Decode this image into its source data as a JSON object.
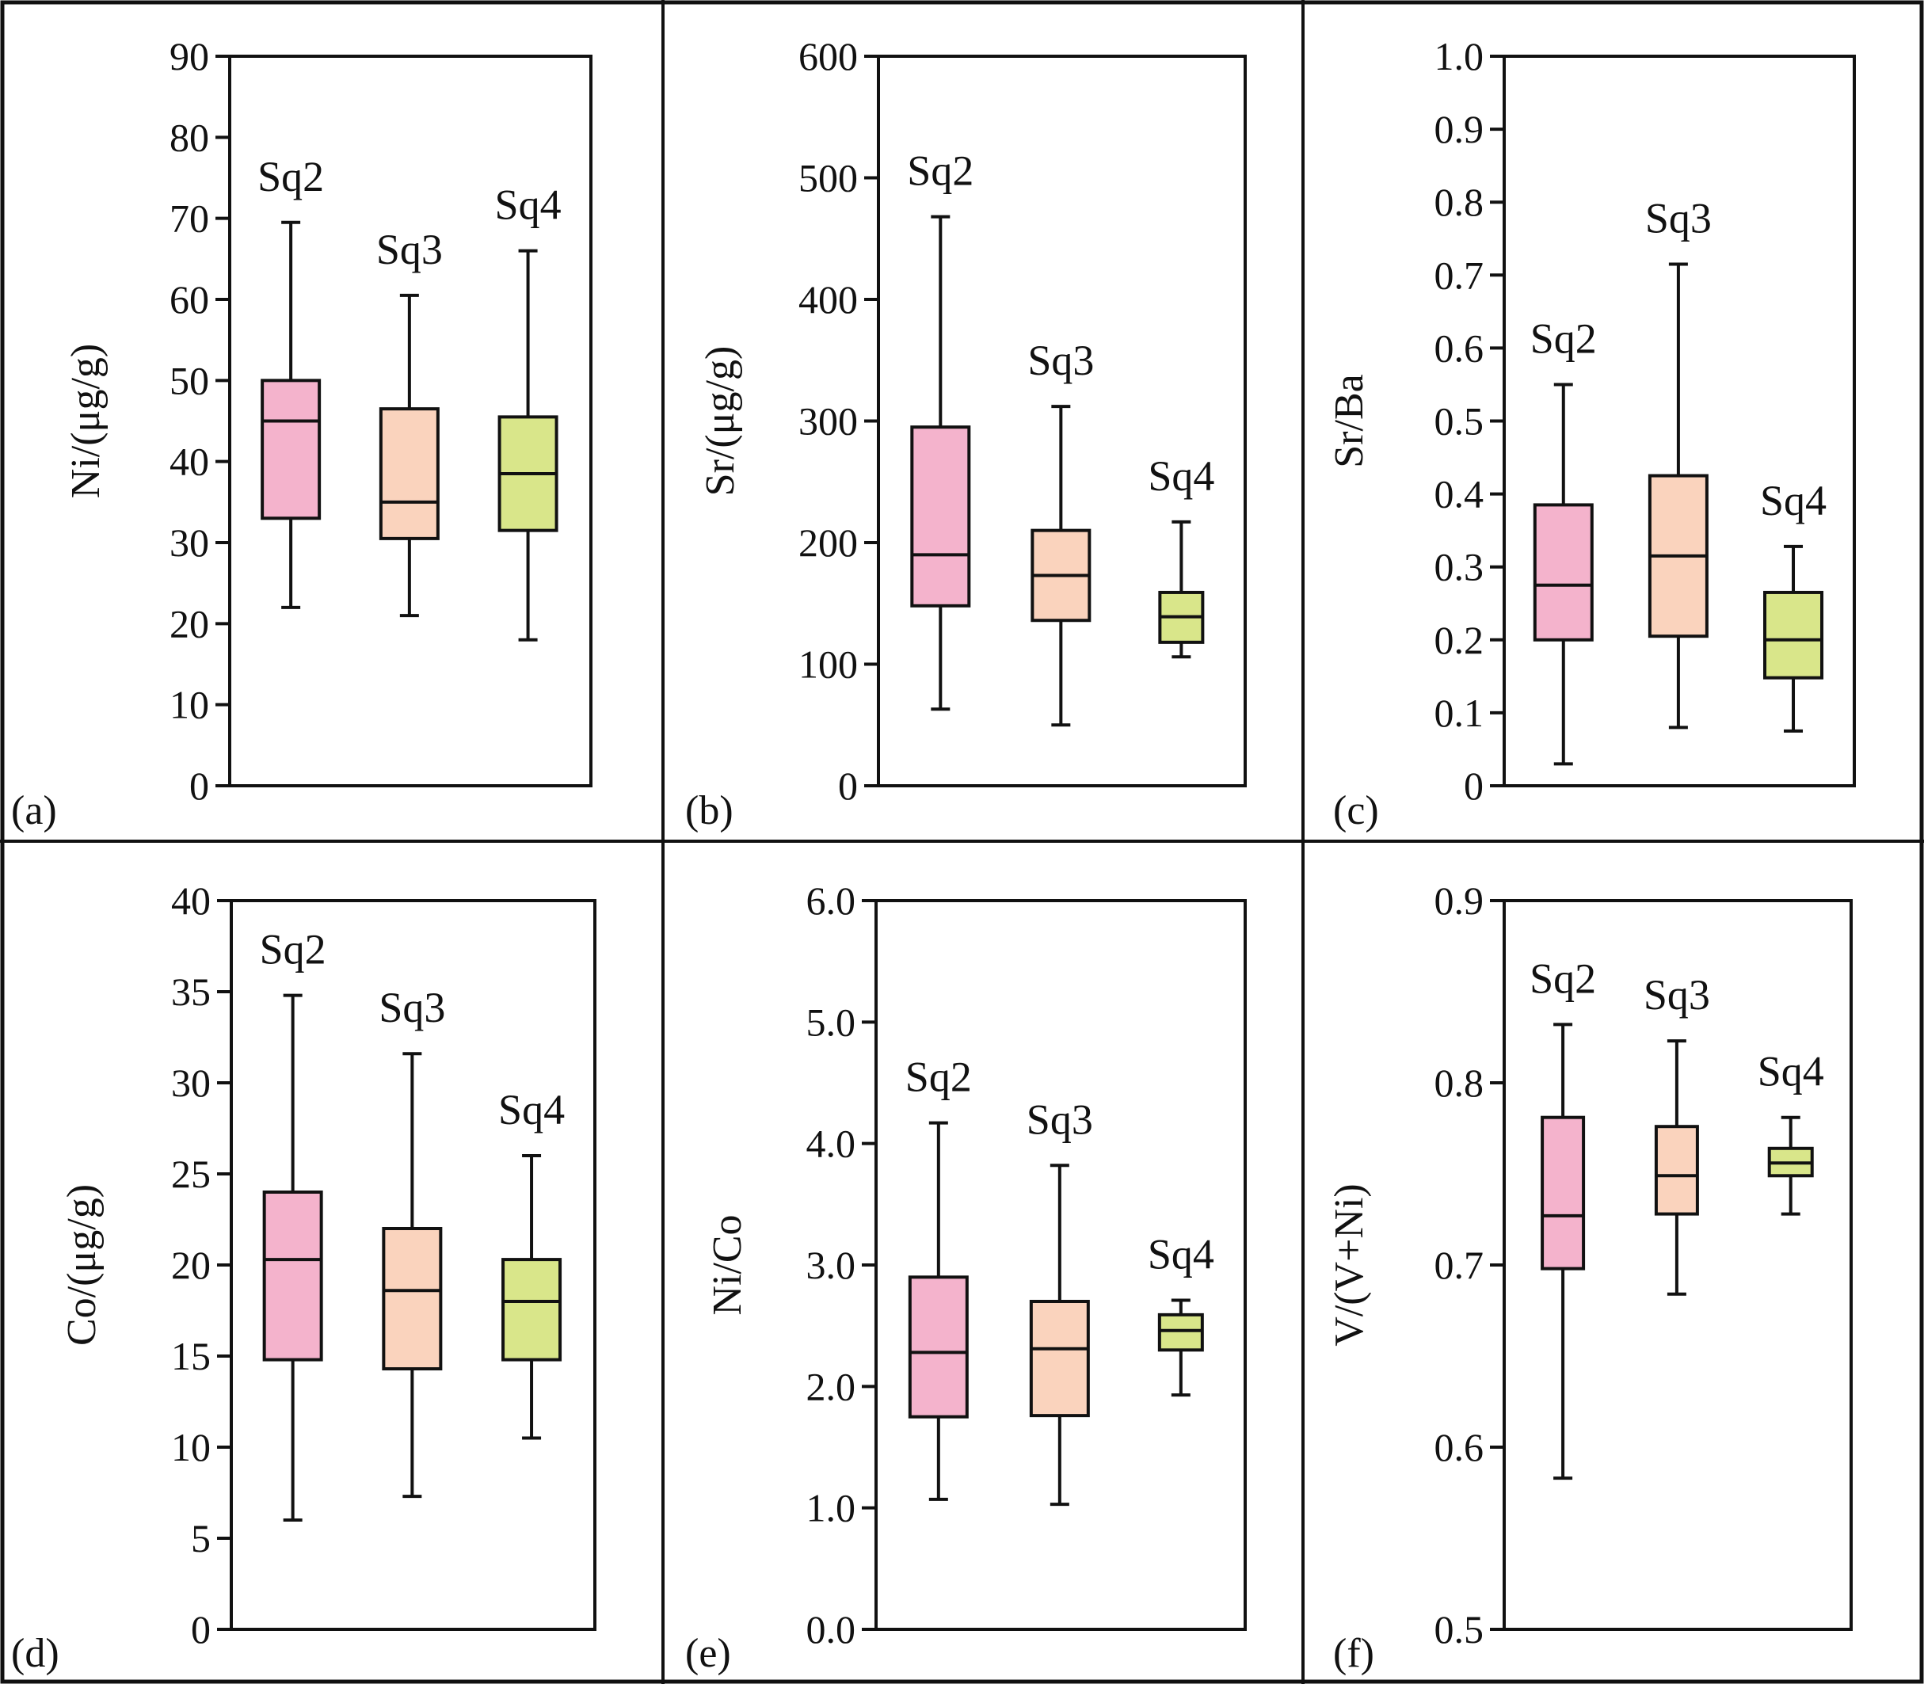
{
  "chart_data": [
    {
      "type": "box",
      "panel_label": "(a)",
      "ylabel": "Ni/(μg/g)",
      "ylim": [
        0,
        90
      ],
      "yticks": [
        0,
        10,
        20,
        30,
        40,
        50,
        60,
        70,
        80,
        90
      ],
      "ytick_labels": [
        "0",
        "10",
        "20",
        "30",
        "40",
        "50",
        "60",
        "70",
        "80",
        "90"
      ],
      "series": [
        {
          "name": "Sq2",
          "color": "#f4b3cc",
          "min": 22,
          "q1": 33,
          "median": 45,
          "q3": 50,
          "max": 69.5
        },
        {
          "name": "Sq3",
          "color": "#fad3bd",
          "min": 21,
          "q1": 30.5,
          "median": 35,
          "q3": 46.5,
          "max": 60.5
        },
        {
          "name": "Sq4",
          "color": "#d9e68a",
          "min": 18,
          "q1": 31.5,
          "median": 38.5,
          "q3": 45.5,
          "max": 66
        }
      ]
    },
    {
      "type": "box",
      "panel_label": "(b)",
      "ylabel": "Sr/(μg/g)",
      "ylim": [
        0,
        600
      ],
      "yticks": [
        0,
        100,
        200,
        300,
        400,
        500,
        600
      ],
      "ytick_labels": [
        "0",
        "100",
        "200",
        "300",
        "400",
        "500",
        "600"
      ],
      "series": [
        {
          "name": "Sq2",
          "color": "#f4b3cc",
          "min": 63,
          "q1": 148,
          "median": 190,
          "q3": 295,
          "max": 468
        },
        {
          "name": "Sq3",
          "color": "#fad3bd",
          "min": 50,
          "q1": 136,
          "median": 173,
          "q3": 210,
          "max": 312
        },
        {
          "name": "Sq4",
          "color": "#d9e68a",
          "min": 106,
          "q1": 118,
          "median": 139,
          "q3": 159,
          "max": 217
        }
      ]
    },
    {
      "type": "box",
      "panel_label": "(c)",
      "ylabel": "Sr/Ba",
      "ylim": [
        0,
        1.0
      ],
      "yticks": [
        0,
        0.1,
        0.2,
        0.3,
        0.4,
        0.5,
        0.6,
        0.7,
        0.8,
        0.9,
        1.0
      ],
      "ytick_labels": [
        "0",
        "0.1",
        "0.2",
        "0.3",
        "0.4",
        "0.5",
        "0.6",
        "0.7",
        "0.8",
        "0.9",
        "1.0"
      ],
      "series": [
        {
          "name": "Sq2",
          "color": "#f4b3cc",
          "min": 0.03,
          "q1": 0.2,
          "median": 0.275,
          "q3": 0.385,
          "max": 0.55
        },
        {
          "name": "Sq3",
          "color": "#fad3bd",
          "min": 0.08,
          "q1": 0.205,
          "median": 0.315,
          "q3": 0.425,
          "max": 0.715
        },
        {
          "name": "Sq4",
          "color": "#d9e68a",
          "min": 0.075,
          "q1": 0.148,
          "median": 0.2,
          "q3": 0.265,
          "max": 0.328
        }
      ]
    },
    {
      "type": "box",
      "panel_label": "(d)",
      "ylabel": "Co/(μg/g)",
      "ylim": [
        0,
        40
      ],
      "yticks": [
        0,
        5,
        10,
        15,
        20,
        25,
        30,
        35,
        40
      ],
      "ytick_labels": [
        "0",
        "5",
        "10",
        "15",
        "20",
        "25",
        "30",
        "35",
        "40"
      ],
      "series": [
        {
          "name": "Sq2",
          "color": "#f4b3cc",
          "min": 6,
          "q1": 14.8,
          "median": 20.3,
          "q3": 24,
          "max": 34.8
        },
        {
          "name": "Sq3",
          "color": "#fad3bd",
          "min": 7.3,
          "q1": 14.3,
          "median": 18.6,
          "q3": 22,
          "max": 31.6
        },
        {
          "name": "Sq4",
          "color": "#d9e68a",
          "min": 10.5,
          "q1": 14.8,
          "median": 18,
          "q3": 20.3,
          "max": 26
        }
      ]
    },
    {
      "type": "box",
      "panel_label": "(e)",
      "ylabel": "Ni/Co",
      "ylim": [
        0,
        6.0
      ],
      "yticks": [
        0,
        1,
        2,
        3,
        4,
        5,
        6
      ],
      "ytick_labels": [
        "0.0",
        "1.0",
        "2.0",
        "3.0",
        "4.0",
        "5.0",
        "6.0"
      ],
      "series": [
        {
          "name": "Sq2",
          "color": "#f4b3cc",
          "min": 1.07,
          "q1": 1.75,
          "median": 2.28,
          "q3": 2.9,
          "max": 4.17
        },
        {
          "name": "Sq3",
          "color": "#fad3bd",
          "min": 1.03,
          "q1": 1.76,
          "median": 2.31,
          "q3": 2.7,
          "max": 3.82
        },
        {
          "name": "Sq4",
          "color": "#d9e68a",
          "min": 1.93,
          "q1": 2.3,
          "median": 2.46,
          "q3": 2.59,
          "max": 2.71
        }
      ]
    },
    {
      "type": "box",
      "panel_label": "(f)",
      "ylabel": "V/(V+Ni)",
      "ylim": [
        0.5,
        0.9
      ],
      "yticks": [
        0.5,
        0.6,
        0.7,
        0.8,
        0.9
      ],
      "ytick_labels": [
        "0.5",
        "0.6",
        "0.7",
        "0.8",
        "0.9"
      ],
      "series": [
        {
          "name": "Sq2",
          "color": "#f4b3cc",
          "min": 0.583,
          "q1": 0.698,
          "median": 0.727,
          "q3": 0.781,
          "max": 0.832
        },
        {
          "name": "Sq3",
          "color": "#fad3bd",
          "min": 0.684,
          "q1": 0.728,
          "median": 0.749,
          "q3": 0.776,
          "max": 0.823
        },
        {
          "name": "Sq4",
          "color": "#d9e68a",
          "min": 0.728,
          "q1": 0.749,
          "median": 0.756,
          "q3": 0.764,
          "max": 0.781
        }
      ]
    }
  ]
}
